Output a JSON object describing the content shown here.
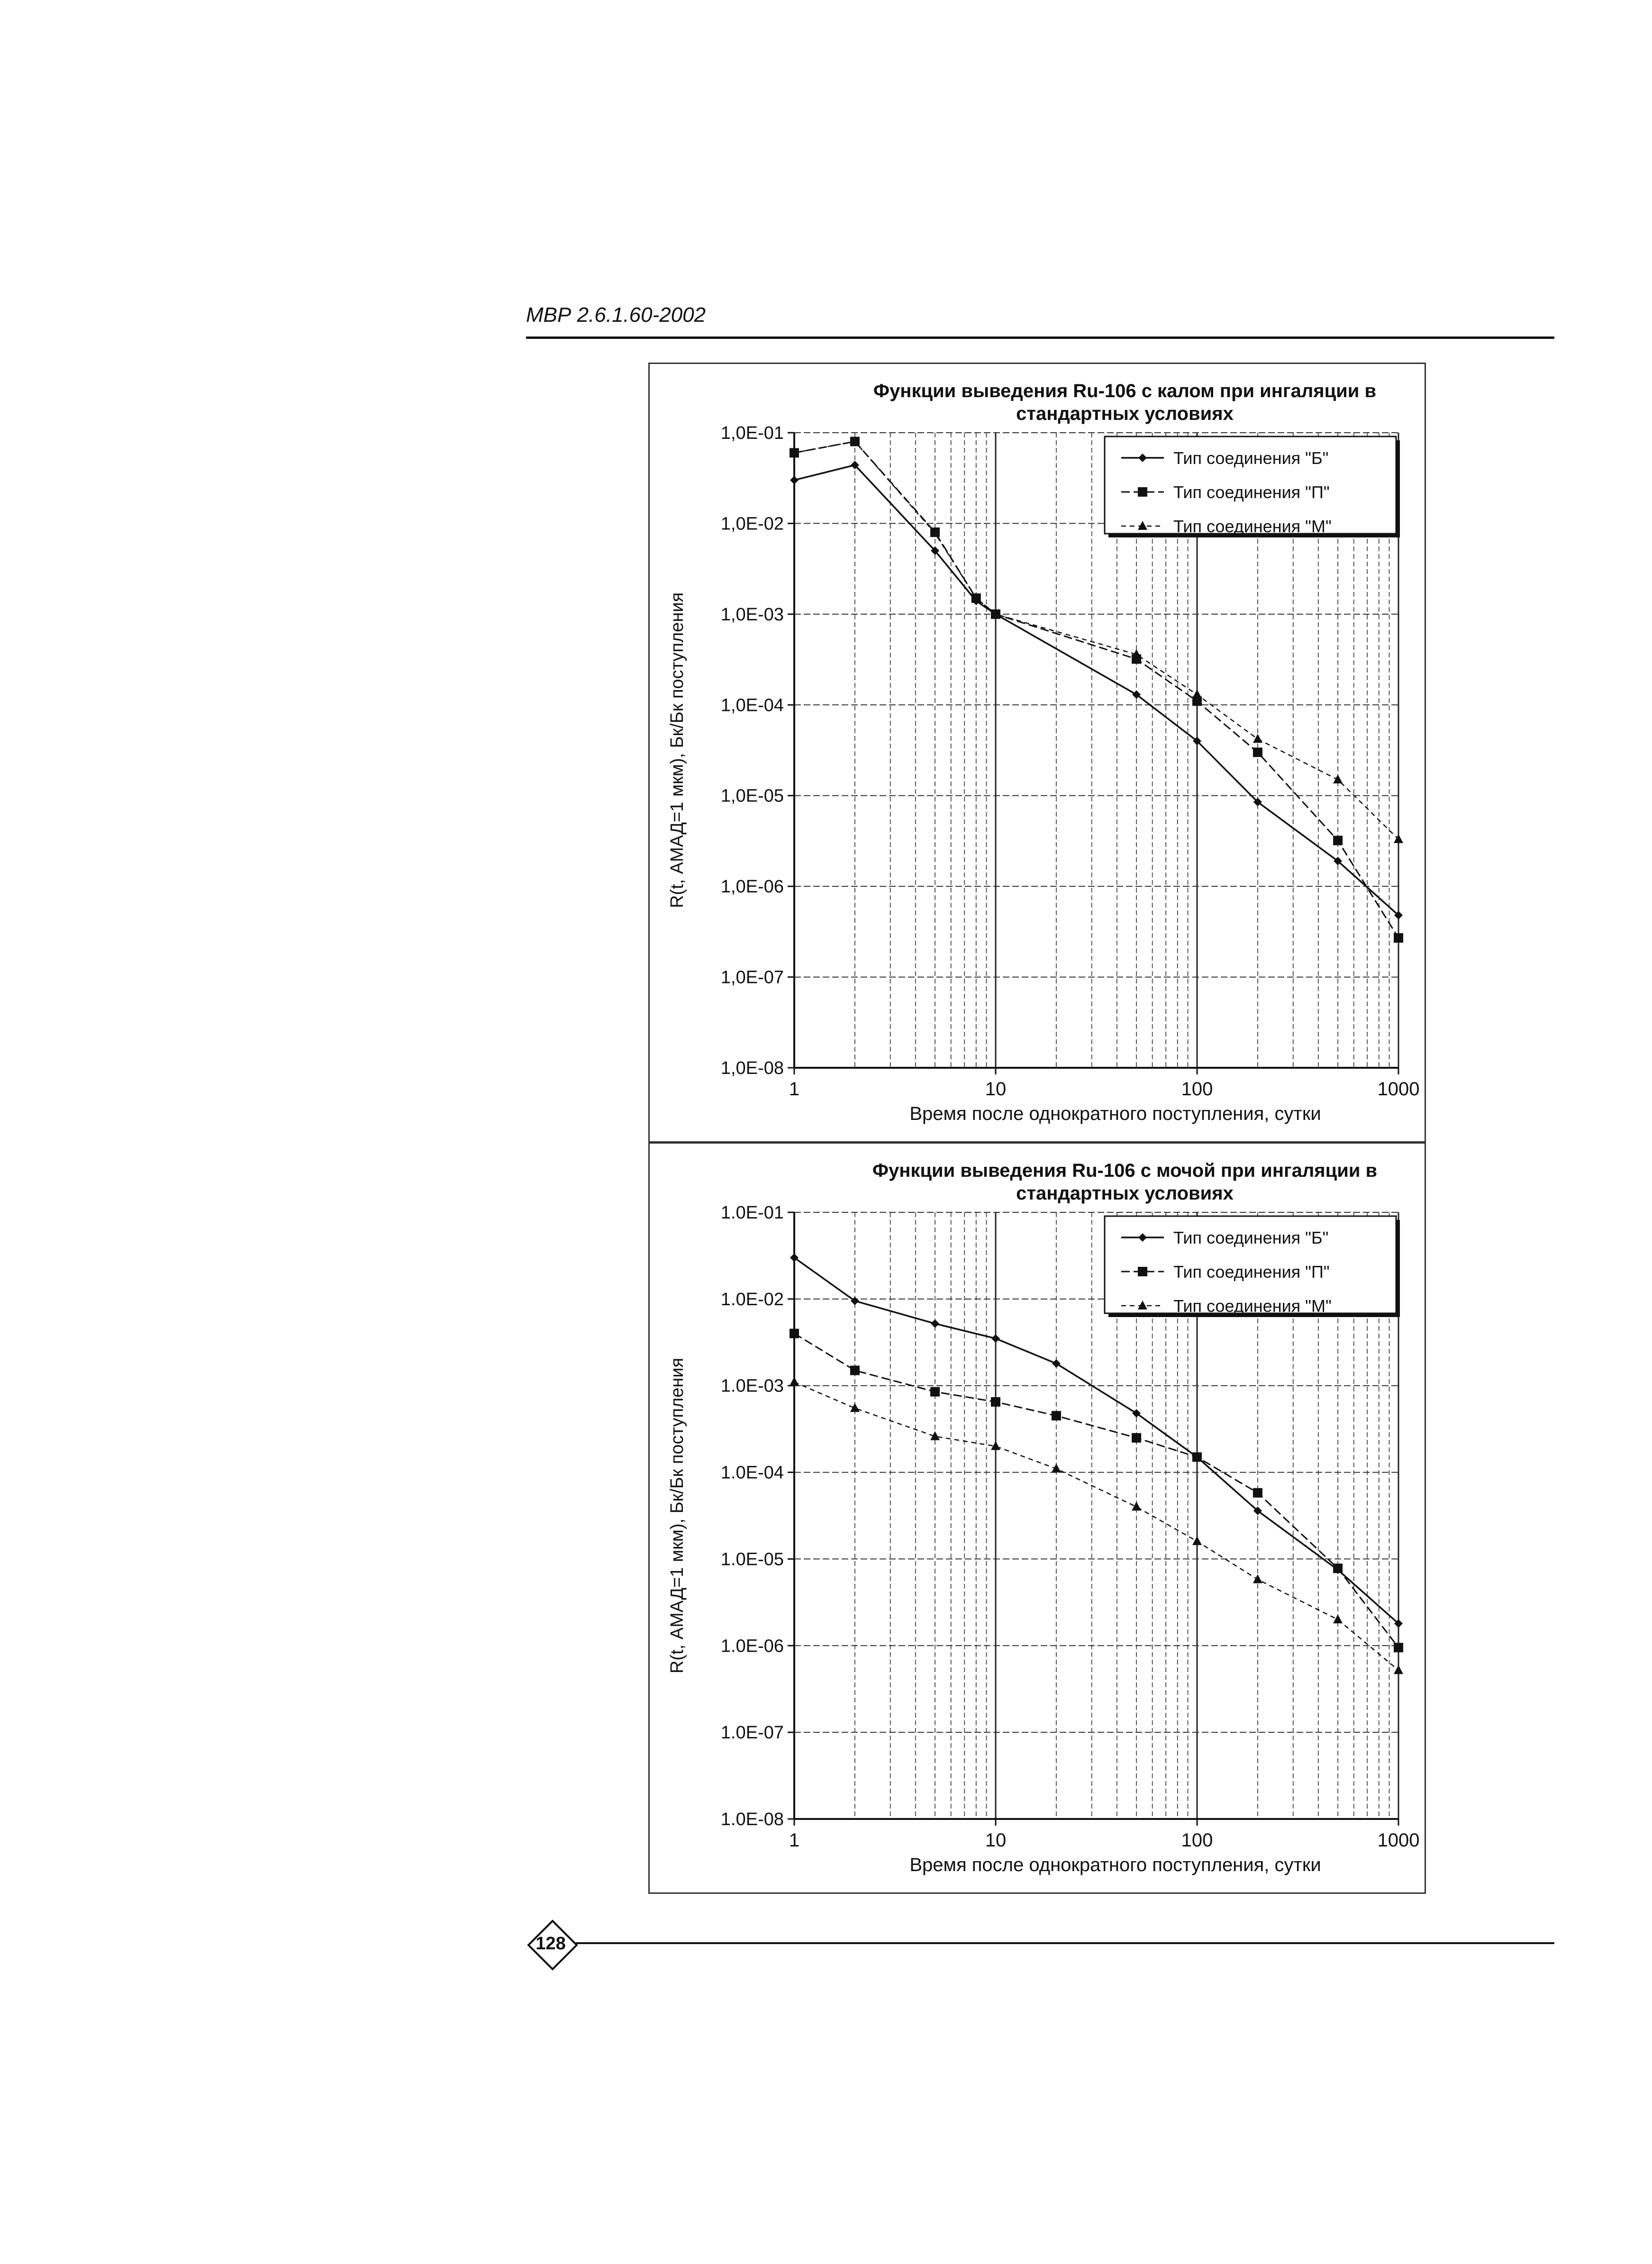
{
  "document": {
    "header": "МВР 2.6.1.60-2002",
    "page_number": "128"
  },
  "chart_data": [
    {
      "type": "line",
      "title": "Функции выведения Ru-106 с калом при ингаляции в стандартных условиях",
      "xlabel": "Время после однократного поступления, сутки",
      "ylabel": "R(t, АМАД=1 мкм), Бк/Бк поступления",
      "x_scale": "log",
      "y_scale": "log",
      "xlim": [
        1,
        1000
      ],
      "ylim": [
        1e-08,
        0.1
      ],
      "x_ticks": [
        "1",
        "10",
        "100",
        "1000"
      ],
      "y_ticks": [
        "1,0E-08",
        "1,0E-07",
        "1,0E-06",
        "1,0E-05",
        "1,0E-04",
        "1,0E-03",
        "1,0E-02",
        "1,0E-01"
      ],
      "grid": true,
      "legend_position": "top-right",
      "x": [
        1,
        2,
        5,
        8,
        10,
        50,
        100,
        200,
        500,
        1000
      ],
      "series": [
        {
          "name": "Тип соединения \"Б\"",
          "marker": "diamond",
          "values": [
            0.03,
            0.044,
            0.005,
            0.0014,
            0.001,
            0.00013,
            4e-05,
            8.5e-06,
            1.9e-06,
            4.8e-07
          ]
        },
        {
          "name": "Тип соединения \"П\"",
          "marker": "square",
          "values": [
            0.06,
            0.08,
            0.008,
            0.0015,
            0.001,
            0.00032,
            0.00011,
            3e-05,
            3.2e-06,
            2.7e-07
          ]
        },
        {
          "name": "Тип соединения \"М\"",
          "marker": "triangle",
          "values": [
            0.06,
            0.08,
            0.0078,
            0.0015,
            0.001,
            0.00036,
            0.00013,
            4.2e-05,
            1.5e-05,
            3.3e-06
          ]
        }
      ]
    },
    {
      "type": "line",
      "title": "Функции выведения Ru-106 с мочой при ингаляции в стандартных условиях",
      "xlabel": "Время после однократного поступления, сутки",
      "ylabel": "R(t, АМАД=1 мкм), Бк/Бк поступления",
      "x_scale": "log",
      "y_scale": "log",
      "xlim": [
        1,
        1000
      ],
      "ylim": [
        1e-08,
        0.1
      ],
      "x_ticks": [
        "1",
        "10",
        "100",
        "1000"
      ],
      "y_ticks": [
        "1.0E-08",
        "1.0E-07",
        "1.0E-06",
        "1.0E-05",
        "1.0E-04",
        "1.0E-03",
        "1.0E-02",
        "1.0E-01"
      ],
      "grid": true,
      "legend_position": "top-right",
      "x": [
        1,
        2,
        5,
        10,
        20,
        50,
        100,
        200,
        500,
        1000
      ],
      "series": [
        {
          "name": "Тип соединения \"Б\"",
          "marker": "diamond",
          "values": [
            0.03,
            0.0095,
            0.0052,
            0.0035,
            0.0018,
            0.00048,
            0.00015,
            3.6e-05,
            7.5e-06,
            1.8e-06
          ]
        },
        {
          "name": "Тип соединения \"П\"",
          "marker": "square",
          "values": [
            0.004,
            0.0015,
            0.00085,
            0.00065,
            0.00045,
            0.00025,
            0.00015,
            5.8e-05,
            7.8e-06,
            9.5e-07
          ]
        },
        {
          "name": "Тип соединения \"М\"",
          "marker": "triangle",
          "values": [
            0.0011,
            0.00055,
            0.00026,
            0.0002,
            0.00011,
            4e-05,
            1.6e-05,
            5.8e-06,
            2e-06,
            5.2e-07
          ]
        }
      ]
    }
  ]
}
